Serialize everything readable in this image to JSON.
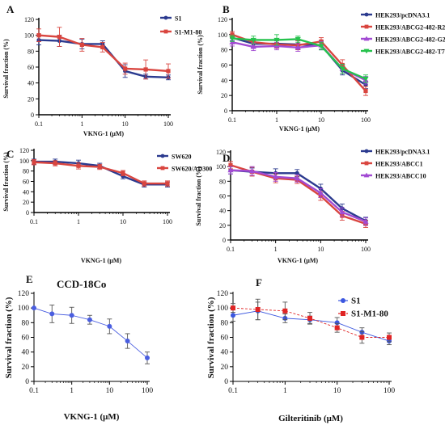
{
  "figure": {
    "panel_letters": [
      "A",
      "B",
      "C",
      "D",
      "E",
      "F"
    ]
  },
  "chart_data": [
    {
      "panel": "A",
      "type": "line",
      "xscale": "log",
      "xlim": [
        0.1,
        100
      ],
      "ylim": [
        0,
        120
      ],
      "xticks": [
        "0.1",
        "1",
        "10",
        "100"
      ],
      "yticks": [
        "0",
        "20",
        "40",
        "60",
        "80",
        "100",
        "120"
      ],
      "xlabel": "VKNG-1 (µM)",
      "ylabel": "Survival fraction (%)",
      "grid": false,
      "legend_position": "top-right",
      "x": [
        0.1,
        0.3,
        1,
        3,
        10,
        30,
        100
      ],
      "series": [
        {
          "name": "S1",
          "color": "#2b3a8f",
          "marker": "circle",
          "values": [
            94,
            93,
            89,
            89,
            55,
            48,
            47
          ],
          "errors": [
            6,
            7,
            6,
            4,
            8,
            3,
            3
          ]
        },
        {
          "name": "S1-M1-80",
          "color": "#d9453f",
          "marker": "square",
          "values": [
            100,
            98,
            88,
            85,
            58,
            57,
            55
          ],
          "errors": [
            8,
            12,
            8,
            6,
            7,
            12,
            9
          ]
        }
      ]
    },
    {
      "panel": "B",
      "type": "line",
      "xscale": "log",
      "xlim": [
        0.1,
        100
      ],
      "ylim": [
        0,
        120
      ],
      "xticks": [
        "0.1",
        "1",
        "10",
        "100"
      ],
      "yticks": [
        "0",
        "20",
        "40",
        "60",
        "80",
        "100",
        "120"
      ],
      "xlabel": "VKNG-1 (µM)",
      "ylabel": "Survival fraction (%)",
      "grid": false,
      "legend_position": "top-right",
      "x": [
        0.1,
        0.3,
        1,
        3,
        10,
        30,
        100
      ],
      "series": [
        {
          "name": "HEK293/pcDNA3.1",
          "color": "#2b3a8f",
          "marker": "circle",
          "values": [
            96,
            88,
            88,
            87,
            86,
            53,
            34
          ],
          "errors": [
            4,
            5,
            4,
            5,
            6,
            6,
            5
          ]
        },
        {
          "name": "HEK293/ABCG2-482-R2",
          "color": "#d9453f",
          "marker": "square",
          "values": [
            100,
            90,
            87,
            86,
            91,
            60,
            26
          ],
          "errors": [
            4,
            5,
            5,
            6,
            5,
            7,
            6
          ]
        },
        {
          "name": "HEK293/ABCG2-482-G2",
          "color": "#a24ad3",
          "marker": "triangle",
          "values": [
            90,
            84,
            85,
            83,
            86,
            55,
            40
          ],
          "errors": [
            5,
            5,
            5,
            5,
            5,
            6,
            5
          ]
        },
        {
          "name": "HEK293/ABCG2-482-T7",
          "color": "#26c24d",
          "marker": "triangle-down",
          "values": [
            95,
            93,
            93,
            94,
            85,
            55,
            42
          ],
          "errors": [
            4,
            5,
            7,
            4,
            5,
            6,
            5
          ]
        }
      ]
    },
    {
      "panel": "C",
      "type": "line",
      "xscale": "log",
      "xlim": [
        0.1,
        100
      ],
      "ylim": [
        0,
        120
      ],
      "xticks": [
        "0.1",
        "1",
        "10",
        "100"
      ],
      "yticks": [
        "0",
        "20",
        "40",
        "60",
        "80",
        "100",
        "120"
      ],
      "xlabel": "VKNG-1 (µM)",
      "ylabel": "Survival fraction (%)",
      "grid": false,
      "legend_position": "top-right",
      "x": [
        0.1,
        0.3,
        1,
        3,
        10,
        30,
        100
      ],
      "series": [
        {
          "name": "SW620",
          "color": "#2b3a8f",
          "marker": "circle",
          "values": [
            98,
            98,
            95,
            90,
            70,
            54,
            54
          ],
          "errors": [
            5,
            5,
            6,
            5,
            5,
            5,
            5
          ]
        },
        {
          "name": "SW620/AD300",
          "color": "#d9453f",
          "marker": "square",
          "values": [
            97,
            95,
            90,
            88,
            76,
            56,
            56
          ],
          "errors": [
            5,
            5,
            6,
            5,
            5,
            5,
            5
          ]
        }
      ]
    },
    {
      "panel": "D",
      "type": "line",
      "xscale": "log",
      "xlim": [
        0.1,
        100
      ],
      "ylim": [
        0,
        120
      ],
      "xticks": [
        "0.1",
        "1",
        "10",
        "100"
      ],
      "yticks": [
        "0",
        "20",
        "40",
        "60",
        "80",
        "100",
        "120"
      ],
      "xlabel": "VKNG-1 (µM)",
      "ylabel": "Survival fraction (%)",
      "grid": false,
      "legend_position": "top-right",
      "x": [
        0.1,
        0.3,
        1,
        3,
        10,
        30,
        100
      ],
      "series": [
        {
          "name": "HEK293/pcDNA3.1",
          "color": "#2b3a8f",
          "marker": "circle",
          "values": [
            95,
            93,
            91,
            91,
            70,
            43,
            26
          ],
          "errors": [
            5,
            5,
            6,
            5,
            6,
            6,
            5
          ]
        },
        {
          "name": "HEK293/ABCC1",
          "color": "#d9453f",
          "marker": "square",
          "values": [
            102,
            93,
            84,
            82,
            60,
            33,
            22
          ],
          "errors": [
            5,
            6,
            6,
            5,
            6,
            6,
            5
          ]
        },
        {
          "name": "HEK293/ABCC10",
          "color": "#a24ad3",
          "marker": "triangle",
          "values": [
            95,
            94,
            86,
            84,
            64,
            38,
            25
          ],
          "errors": [
            5,
            6,
            6,
            5,
            6,
            6,
            5
          ]
        }
      ]
    },
    {
      "panel": "E",
      "type": "line",
      "xscale": "log",
      "title": "CCD-18Co",
      "xlim": [
        0.1,
        100
      ],
      "ylim": [
        0,
        120
      ],
      "xticks": [
        "0.1",
        "1",
        "10",
        "100"
      ],
      "yticks": [
        "0",
        "20",
        "40",
        "60",
        "80",
        "100",
        "120"
      ],
      "xlabel": "VKNG-1 (μM)",
      "ylabel": "Survival fraction (%)",
      "grid": false,
      "x": [
        0.1,
        0.3,
        1,
        3,
        10,
        30,
        100
      ],
      "series": [
        {
          "name": "",
          "color": "#4a5ee0",
          "marker": "circle",
          "values": [
            100,
            92,
            90,
            84,
            75,
            55,
            32
          ],
          "errors": [
            0,
            12,
            11,
            6,
            10,
            10,
            8
          ]
        }
      ]
    },
    {
      "panel": "F",
      "type": "line",
      "xscale": "log",
      "xlim": [
        0.1,
        100
      ],
      "ylim": [
        0,
        120
      ],
      "xticks": [
        "0.1",
        "1",
        "10",
        "100"
      ],
      "yticks": [
        "0",
        "20",
        "40",
        "60",
        "80",
        "100",
        "120"
      ],
      "xlabel": "Gilteritinib (μM)",
      "ylabel": "Survival fraction (%)",
      "grid": false,
      "legend_position": "top-right",
      "x": [
        0.1,
        0.3,
        1,
        3,
        10,
        30,
        100
      ],
      "series": [
        {
          "name": "S1",
          "color": "#3b57e0",
          "marker": "circle",
          "values": [
            90,
            96,
            86,
            84,
            80,
            67,
            55
          ],
          "errors": [
            8,
            12,
            6,
            5,
            7,
            6,
            5
          ]
        },
        {
          "name": "S1-M1-80",
          "color": "#e02424",
          "marker": "square",
          "values": [
            100,
            98,
            96,
            86,
            73,
            60,
            60
          ],
          "errors": [
            6,
            14,
            12,
            8,
            6,
            8,
            6
          ]
        }
      ]
    }
  ]
}
